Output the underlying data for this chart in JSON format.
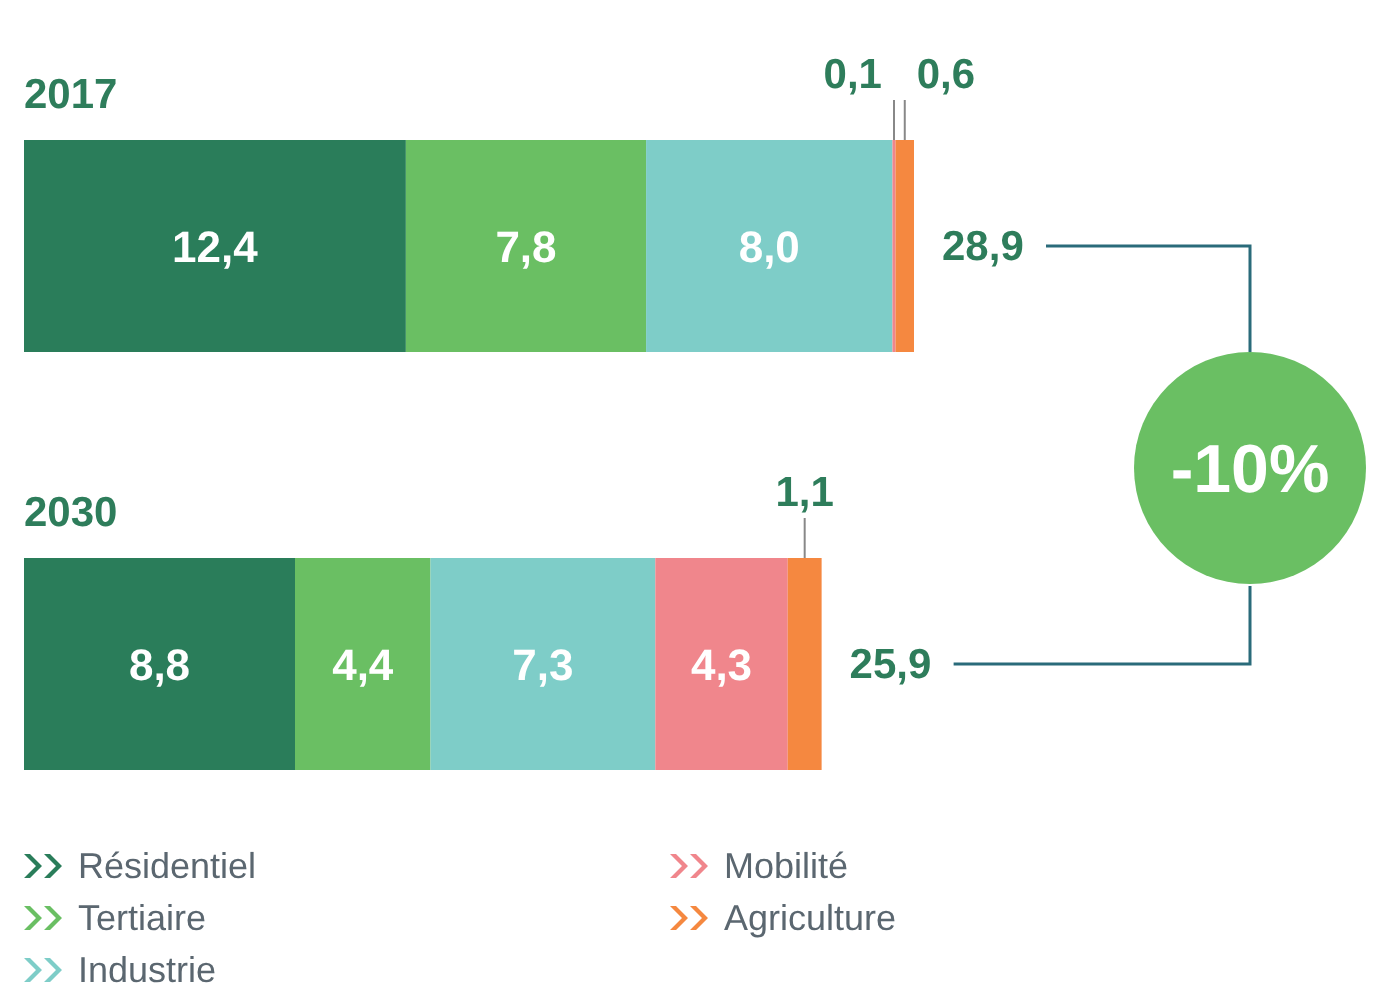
{
  "chart_data": {
    "type": "bar",
    "orientation": "horizontal",
    "stacked": true,
    "categories": [
      "2017",
      "2030"
    ],
    "series": [
      {
        "name": "Résidentiel",
        "color": "#2a7d5a",
        "values": [
          12.4,
          8.8
        ],
        "value_labels": [
          "12,4",
          "8,8"
        ]
      },
      {
        "name": "Tertiaire",
        "color": "#6abf63",
        "values": [
          7.8,
          4.4
        ],
        "value_labels": [
          "7,8",
          "4,4"
        ]
      },
      {
        "name": "Industrie",
        "color": "#7ecdc8",
        "values": [
          8.0,
          7.3
        ],
        "value_labels": [
          "8,0",
          "7,3"
        ]
      },
      {
        "name": "Mobilité",
        "color": "#f0868c",
        "values": [
          0.1,
          4.3
        ],
        "value_labels": [
          "0,1",
          "4,3"
        ]
      },
      {
        "name": "Agriculture",
        "color": "#f58840",
        "values": [
          0.6,
          1.1
        ],
        "value_labels": [
          "0,6",
          "1,1"
        ]
      }
    ],
    "totals": [
      "28,9",
      "25,9"
    ],
    "annotations": [
      "-10%"
    ],
    "legend": "bottom"
  }
}
